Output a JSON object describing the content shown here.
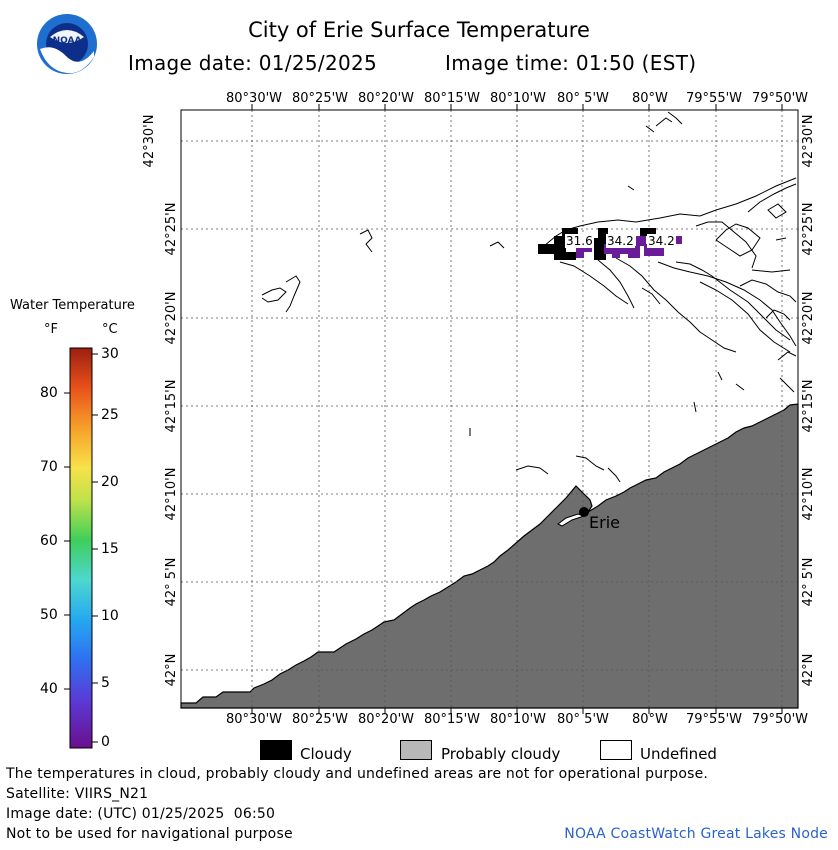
{
  "header": {
    "title": "City of Erie Surface Temperature",
    "image_date": "Image date: 01/25/2025",
    "image_time": "Image time: 01:50 (EST)"
  },
  "logo": {
    "text": "NOAA"
  },
  "map": {
    "lon_labels": [
      "80°30'W",
      "80°25'W",
      "80°20'W",
      "80°15'W",
      "80°10'W",
      "80° 5'W",
      "80°W",
      "79°55'W",
      "79°50'W"
    ],
    "lat_labels": [
      "42°30'N",
      "42°25'N",
      "42°20'N",
      "42°15'N",
      "42°10'N",
      "42° 5'N",
      "42°N"
    ],
    "city_label": "Erie",
    "temp_labels": [
      "31.6",
      "34.2",
      "34.2"
    ],
    "land_color": "#6e6e6e",
    "cloud_color": "#000000",
    "purple_color": "#6a1b9a"
  },
  "colorbar": {
    "title": "Water Temperature",
    "unit_f": "°F",
    "unit_c": "°C",
    "f_ticks": [
      "80",
      "70",
      "60",
      "50",
      "40"
    ],
    "c_ticks": [
      "30",
      "25",
      "20",
      "15",
      "10",
      "5",
      "0"
    ]
  },
  "legend": {
    "cloudy": "Cloudy",
    "probably_cloudy": "Probably cloudy",
    "undefined": "Undefined",
    "cloudy_color": "#000000",
    "probably_cloudy_color": "#b8b8b8",
    "undefined_color": "#ffffff"
  },
  "footer": {
    "disclaimer": "The temperatures in cloud, probably cloudy and undefined areas are not for operational purpose.",
    "satellite": "Satellite: VIIRS_N21",
    "utc_date": "Image date: (UTC) 01/25/2025  06:50",
    "nav_warning": "Not to be used for navigational purpose",
    "credit": "NOAA CoastWatch Great Lakes Node"
  }
}
